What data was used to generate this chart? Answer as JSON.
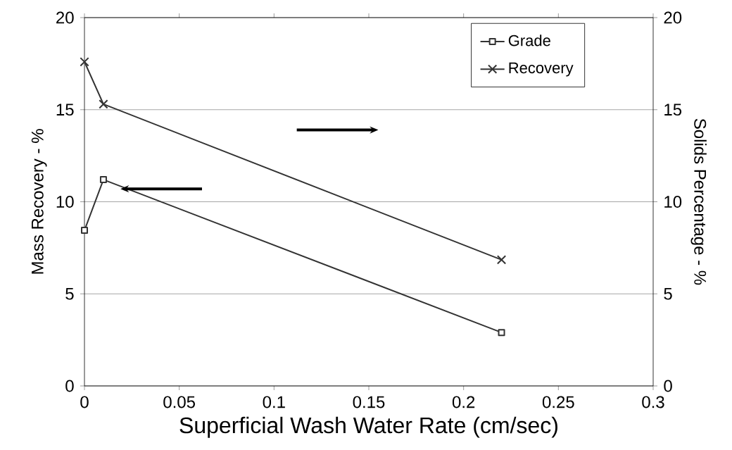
{
  "chart_data": {
    "type": "line",
    "xlabel": "Superficial Wash Water Rate (cm/sec)",
    "ylabel": "Mass Recovery - %",
    "y2label": "Solids Percentage - %",
    "x": [
      0,
      0.01,
      0.22
    ],
    "series": [
      {
        "name": "Grade",
        "color": "#333333",
        "values": [
          8.45,
          11.2,
          2.9
        ],
        "marker": "square"
      },
      {
        "name": "Recovery",
        "color": "#333333",
        "values": [
          17.6,
          15.3,
          6.85
        ],
        "marker": "cross",
        "axis": "y2"
      }
    ],
    "xlim": [
      0,
      0.3
    ],
    "xticks": [
      0,
      0.05,
      0.1,
      0.15,
      0.2,
      0.25,
      0.3
    ],
    "ylim": [
      0,
      20
    ],
    "yticks": [
      0,
      5,
      10,
      15,
      20
    ],
    "y2lim": [
      0,
      20
    ],
    "y2ticks": [
      0,
      5,
      10,
      15,
      20
    ],
    "grid": "y",
    "legend": "top right"
  }
}
